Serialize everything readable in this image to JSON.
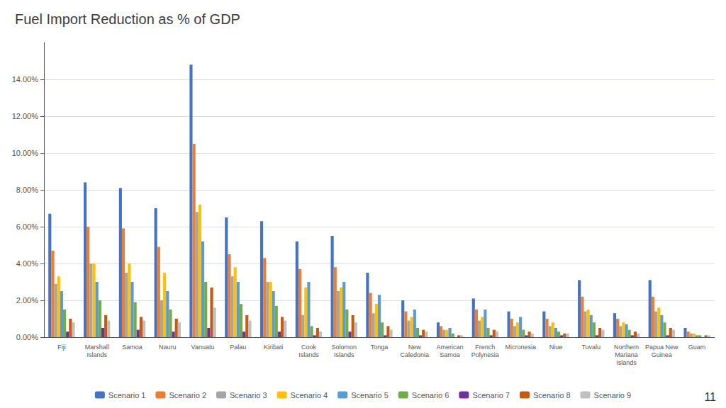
{
  "chart_data": {
    "type": "bar",
    "title": "Fuel Import Reduction as % of GDP",
    "categories": [
      "Fiji",
      "Marshall\nIslands",
      "Samoa",
      "Nauru",
      "Vanuatu",
      "Palau",
      "Kiribati",
      "Cook\nIslands",
      "Solomon\nIslands",
      "Tonga",
      "New\nCaledonia",
      "American\nSamoa",
      "French\nPolynesia",
      "Micronesia",
      "Niue",
      "Tuvalu",
      "Northern\nMariana\nIslands",
      "Papua New\nGuinea",
      "Guam"
    ],
    "series": [
      {
        "name": "Scenario 1",
        "color": "#4472c4",
        "values": [
          0.067,
          0.084,
          0.081,
          0.07,
          0.148,
          0.065,
          0.063,
          0.052,
          0.055,
          0.035,
          0.02,
          0.008,
          0.021,
          0.014,
          0.014,
          0.031,
          0.013,
          0.031,
          0.005
        ]
      },
      {
        "name": "Scenario 2",
        "color": "#ed7d31",
        "values": [
          0.047,
          0.06,
          0.059,
          0.049,
          0.105,
          0.045,
          0.043,
          0.037,
          0.038,
          0.024,
          0.014,
          0.006,
          0.015,
          0.01,
          0.01,
          0.022,
          0.01,
          0.022,
          0.003
        ]
      },
      {
        "name": "Scenario 3",
        "color": "#a5a5a5",
        "values": [
          0.029,
          0.04,
          0.035,
          0.02,
          0.068,
          0.033,
          0.03,
          0.012,
          0.025,
          0.013,
          0.009,
          0.004,
          0.009,
          0.006,
          0.006,
          0.014,
          0.006,
          0.014,
          0.002
        ]
      },
      {
        "name": "Scenario 4",
        "color": "#ffc000",
        "values": [
          0.033,
          0.04,
          0.04,
          0.035,
          0.072,
          0.038,
          0.03,
          0.027,
          0.027,
          0.018,
          0.011,
          0.004,
          0.011,
          0.008,
          0.008,
          0.015,
          0.008,
          0.016,
          0.002
        ]
      },
      {
        "name": "Scenario 5",
        "color": "#5b9bd5",
        "values": [
          0.025,
          0.03,
          0.03,
          0.025,
          0.052,
          0.03,
          0.025,
          0.03,
          0.03,
          0.023,
          0.015,
          0.005,
          0.015,
          0.011,
          0.005,
          0.012,
          0.007,
          0.012,
          0.001
        ]
      },
      {
        "name": "Scenario 6",
        "color": "#70ad47",
        "values": [
          0.015,
          0.02,
          0.019,
          0.015,
          0.03,
          0.018,
          0.017,
          0.006,
          0.015,
          0.008,
          0.005,
          0.002,
          0.005,
          0.004,
          0.003,
          0.008,
          0.004,
          0.008,
          0.001
        ]
      },
      {
        "name": "Scenario 7",
        "color": "#7030a0",
        "values": [
          0.003,
          0.005,
          0.004,
          0.003,
          0.005,
          0.003,
          0.003,
          0.001,
          0.003,
          0.001,
          0.001,
          0.0,
          0.001,
          0.001,
          0.001,
          0.001,
          0.001,
          0.001,
          0.0
        ]
      },
      {
        "name": "Scenario 8",
        "color": "#c55a11",
        "values": [
          0.01,
          0.012,
          0.011,
          0.01,
          0.027,
          0.012,
          0.011,
          0.005,
          0.012,
          0.006,
          0.004,
          0.001,
          0.004,
          0.003,
          0.002,
          0.005,
          0.003,
          0.005,
          0.001
        ]
      },
      {
        "name": "Scenario 9",
        "color": "#bfbfbf",
        "values": [
          0.008,
          0.009,
          0.009,
          0.008,
          0.016,
          0.009,
          0.009,
          0.003,
          0.008,
          0.004,
          0.003,
          0.001,
          0.003,
          0.002,
          0.002,
          0.004,
          0.002,
          0.004,
          0.001
        ]
      }
    ],
    "ylim": [
      0,
      0.16
    ],
    "yticks": [
      {
        "value": 0.0,
        "label": "0.00%"
      },
      {
        "value": 0.02,
        "label": "2.00%"
      },
      {
        "value": 0.04,
        "label": "4.00%"
      },
      {
        "value": 0.06,
        "label": "6.00%"
      },
      {
        "value": 0.08,
        "label": "8.00%"
      },
      {
        "value": 0.1,
        "label": "10.00%"
      },
      {
        "value": 0.12,
        "label": "12.00%"
      },
      {
        "value": 0.14,
        "label": "14.00%"
      }
    ],
    "grid": true,
    "legend": "bottom",
    "annotations": [
      "11"
    ]
  }
}
